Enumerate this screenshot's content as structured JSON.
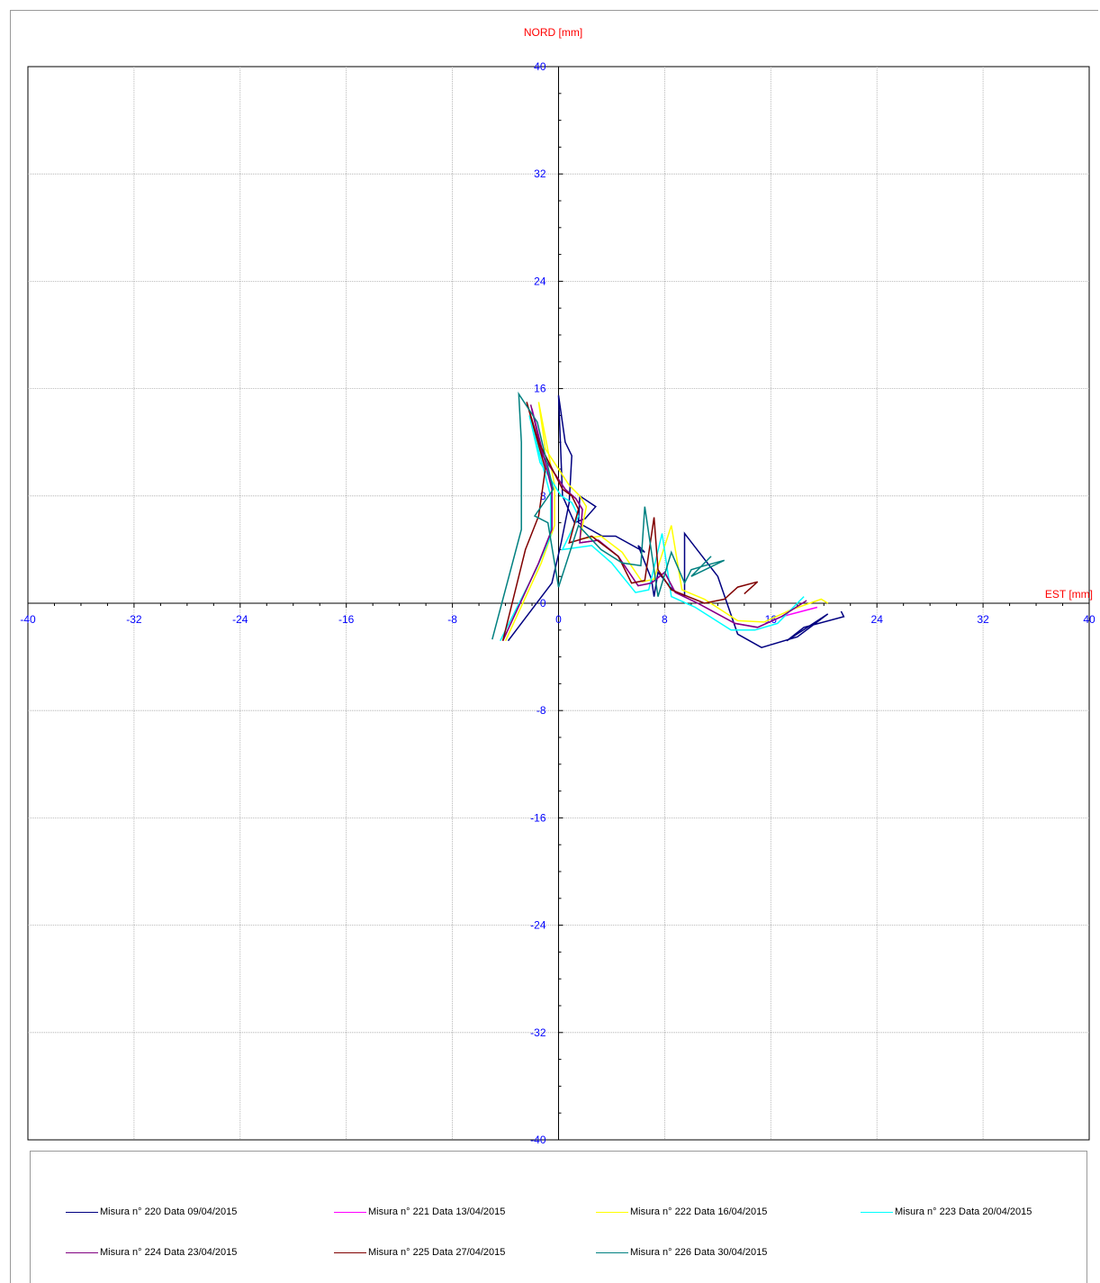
{
  "chart_data": {
    "type": "line",
    "ylabel": "NORD  [mm]",
    "xlabel": "EST [mm]",
    "xlim": [
      -40,
      40
    ],
    "ylim": [
      -40,
      40
    ],
    "xticks": [
      "-40",
      "-32",
      "-24",
      "-16",
      "-8",
      "0",
      "8",
      "16",
      "24",
      "32",
      "40"
    ],
    "yticks": [
      "40",
      "32",
      "24",
      "16",
      "8",
      "0",
      "-8",
      "-16",
      "-24",
      "-32",
      "-40"
    ],
    "grid": true,
    "legend": "bottom",
    "series": [
      {
        "name": "Misura n° 220 Data 09/04/2015",
        "color": "#000080",
        "x": [
          -3.8,
          -0.5,
          0.2,
          0.8,
          1.0,
          0.5,
          0.0,
          0.3,
          1.2,
          2.0,
          2.8,
          1.6,
          1.5,
          3.3,
          4.3,
          6.5,
          6.0,
          7.0,
          7.2,
          7.5,
          8.6,
          9.5,
          9.5,
          12.0,
          13.5,
          15.3,
          18.0,
          20.3,
          17.2,
          18.5,
          21.5,
          21.3
        ],
        "y": [
          -2.8,
          1.5,
          4.5,
          7.5,
          11.0,
          12.0,
          15.5,
          8.0,
          6.0,
          6.3,
          7.2,
          8.0,
          6.0,
          5.0,
          5.0,
          3.8,
          4.3,
          1.8,
          0.5,
          2.3,
          1.0,
          0.5,
          5.2,
          2.0,
          -2.3,
          -3.3,
          -2.5,
          -0.8,
          -2.8,
          -1.8,
          -1.0,
          -0.6
        ]
      },
      {
        "name": "Misura n° 221 Data 13/04/2015",
        "color": "#ff00ff",
        "x": [
          -4.2,
          -1.5,
          -0.5,
          -0.5,
          -2.0,
          -1.2,
          0.5,
          1.3,
          1.8,
          1.6,
          3.0,
          4.5,
          6.0,
          7.0,
          8.0,
          8.8,
          10.5,
          13.3,
          15.0,
          16.8,
          19.5
        ],
        "y": [
          -2.8,
          3.0,
          5.5,
          8.5,
          14.5,
          11.0,
          8.5,
          7.8,
          7.0,
          4.5,
          4.7,
          3.5,
          1.3,
          1.5,
          2.3,
          0.8,
          0.0,
          -1.5,
          -1.8,
          -1.0,
          -0.3
        ]
      },
      {
        "name": "Misura n° 222 Data 16/04/2015",
        "color": "#ffff00",
        "x": [
          -4.0,
          -1.3,
          -0.3,
          -0.3,
          -1.5,
          -1.0,
          0.8,
          1.6,
          2.1,
          1.6,
          3.2,
          4.8,
          6.3,
          7.2,
          8.5,
          9.3,
          11.0,
          13.5,
          15.5,
          17.5,
          19.8,
          20.3
        ],
        "y": [
          -2.8,
          3.0,
          5.8,
          8.8,
          15.0,
          11.5,
          8.8,
          8.0,
          7.2,
          4.8,
          5.0,
          3.8,
          1.6,
          1.8,
          5.8,
          1.0,
          0.3,
          -1.3,
          -1.4,
          -0.5,
          0.3,
          0.0
        ]
      },
      {
        "name": "Misura n° 223 Data 20/04/2015",
        "color": "#00ffff",
        "x": [
          -4.4,
          -1.7,
          -0.6,
          -0.6,
          -2.2,
          -1.4,
          0.2,
          1.0,
          1.5,
          0.3,
          2.5,
          4.0,
          5.8,
          6.8,
          7.8,
          8.5,
          10.3,
          13.0,
          14.8,
          16.5,
          18.5
        ],
        "y": [
          -2.8,
          2.5,
          5.0,
          8.0,
          14.0,
          10.5,
          8.0,
          7.5,
          6.5,
          4.0,
          4.3,
          3.0,
          0.8,
          1.0,
          5.2,
          0.5,
          -0.3,
          -2.0,
          -2.0,
          -1.5,
          0.5
        ]
      },
      {
        "name": "Misura n° 224 Data 23/04/2015",
        "color": "#800080",
        "x": [
          -4.2,
          -1.5,
          -0.5,
          -0.5,
          -2.1,
          -1.2,
          0.5,
          1.3,
          1.8,
          1.6,
          3.0,
          4.5,
          6.0,
          7.0,
          8.0,
          8.8,
          10.5,
          13.3,
          15.0,
          16.8,
          18.7
        ],
        "y": [
          -2.8,
          3.0,
          5.5,
          8.5,
          14.8,
          11.0,
          8.5,
          7.8,
          7.0,
          4.5,
          4.7,
          3.5,
          1.3,
          1.5,
          2.3,
          0.8,
          0.0,
          -1.5,
          -1.8,
          -1.0,
          0.2
        ]
      },
      {
        "name": "Misura n° 225 Data 27/04/2015",
        "color": "#800000",
        "x": [
          -4.2,
          -2.5,
          -1.5,
          -1.0,
          -2.4,
          -1.5,
          0.3,
          1.0,
          1.5,
          0.8,
          2.5,
          4.5,
          5.5,
          6.5,
          7.2,
          7.5,
          8.5,
          11.0,
          12.5,
          13.5,
          15.0,
          14.0
        ],
        "y": [
          -2.8,
          4.0,
          6.5,
          10.0,
          15.0,
          12.0,
          8.5,
          8.0,
          7.0,
          4.5,
          5.0,
          3.5,
          1.5,
          1.7,
          6.4,
          2.5,
          1.0,
          0.0,
          0.3,
          1.2,
          1.6,
          0.7
        ]
      },
      {
        "name": "Misura n° 226 Data 30/04/2015",
        "color": "#008080",
        "x": [
          -5.0,
          -2.8,
          -2.8,
          -3.0,
          -1.6,
          -0.4,
          -1.8,
          -0.8,
          0.0,
          1.5,
          3.2,
          4.8,
          6.2,
          6.5,
          7.5,
          8.5,
          9.5,
          10.0,
          11.0,
          12.5,
          10.0,
          11.5
        ],
        "y": [
          -2.7,
          5.5,
          12.0,
          15.6,
          13.5,
          8.5,
          6.5,
          6.0,
          1.2,
          5.8,
          4.0,
          3.0,
          2.8,
          7.2,
          0.5,
          3.8,
          1.5,
          2.5,
          2.8,
          3.2,
          2.0,
          3.5
        ]
      }
    ]
  }
}
